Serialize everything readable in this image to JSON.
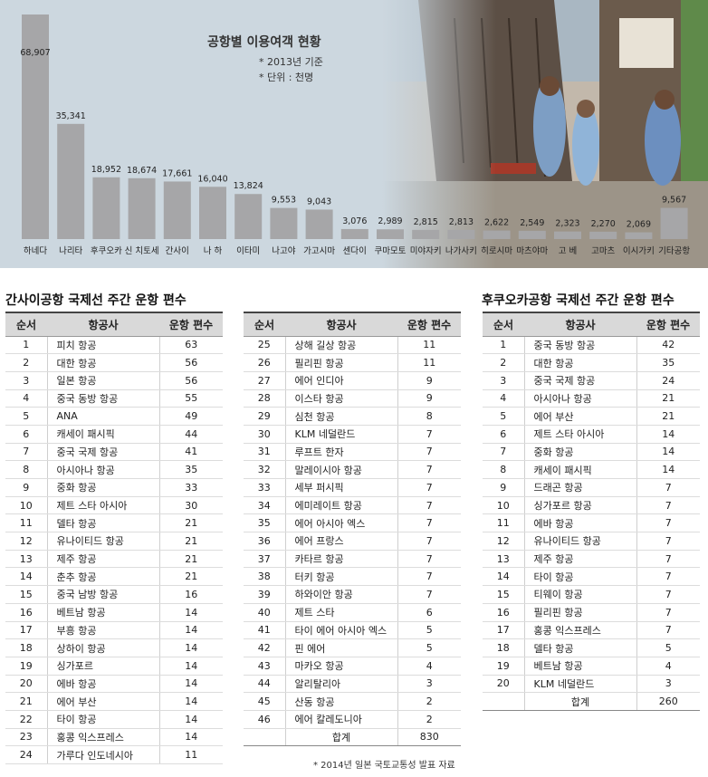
{
  "chart_data": {
    "type": "bar",
    "title": "공항별 이용여객 현황",
    "notes": [
      "* 2013년 기준",
      "* 단위 : 천명"
    ],
    "categories": [
      "하네다",
      "나리타",
      "후쿠오카",
      "신 치토세",
      "간사이",
      "나 하",
      "이타미",
      "나고야",
      "가고시마",
      "센다이",
      "쿠마모토",
      "미야자키",
      "나가사키",
      "히로시마",
      "마츠야마",
      "고 베",
      "고마츠",
      "이시가키",
      "기타공항"
    ],
    "values": [
      68907,
      35341,
      18952,
      18674,
      17661,
      16040,
      13824,
      9553,
      9043,
      3076,
      2989,
      2815,
      2813,
      2622,
      2549,
      2323,
      2270,
      2069,
      9567
    ],
    "value_labels": [
      "68,907",
      "35,341",
      "18,952",
      "18,674",
      "17,661",
      "16,040",
      "13,824",
      "9,553",
      "9,043",
      "3,076",
      "2,989",
      "2,815",
      "2,813",
      "2,622",
      "2,549",
      "2,323",
      "2,270",
      "2,069",
      "9,567"
    ],
    "colors": {
      "bar": "#a6a6a8",
      "panel": "#ccd7df"
    }
  },
  "tables": {
    "kansai": {
      "title": "간사이공항 국제선 주간 운항 편수",
      "headers": [
        "순서",
        "항공사",
        "운항 편수"
      ],
      "rows": [
        [
          "1",
          "피치 항공",
          "63"
        ],
        [
          "2",
          "대한 항공",
          "56"
        ],
        [
          "3",
          "일본 항공",
          "56"
        ],
        [
          "4",
          "중국 동방 항공",
          "55"
        ],
        [
          "5",
          "ANA",
          "49"
        ],
        [
          "6",
          "캐세이 패시픽",
          "44"
        ],
        [
          "7",
          "중국 국제 항공",
          "41"
        ],
        [
          "8",
          "아시아나 항공",
          "35"
        ],
        [
          "9",
          "중화 항공",
          "33"
        ],
        [
          "10",
          "제트 스타 아시아",
          "30"
        ],
        [
          "11",
          "델타 항공",
          "21"
        ],
        [
          "12",
          "유나이티드 항공",
          "21"
        ],
        [
          "13",
          "제주 항공",
          "21"
        ],
        [
          "14",
          "춘추 항공",
          "21"
        ],
        [
          "15",
          "중국 남방 항공",
          "16"
        ],
        [
          "16",
          "베트남 항공",
          "14"
        ],
        [
          "17",
          "부흥 항공",
          "14"
        ],
        [
          "18",
          "상하이 항공",
          "14"
        ],
        [
          "19",
          "싱가포르",
          "14"
        ],
        [
          "20",
          "에바 항공",
          "14"
        ],
        [
          "21",
          "에어 부산",
          "14"
        ],
        [
          "22",
          "타이 항공",
          "14"
        ],
        [
          "23",
          "홍콩 익스프레스",
          "14"
        ],
        [
          "24",
          "가루다 인도네시아",
          "11"
        ]
      ]
    },
    "kansai2": {
      "headers": [
        "순서",
        "항공사",
        "운항 편수"
      ],
      "rows": [
        [
          "25",
          "상해 길상 항공",
          "11"
        ],
        [
          "26",
          "필리핀 항공",
          "11"
        ],
        [
          "27",
          "에어 인디아",
          "9"
        ],
        [
          "28",
          "이스타 항공",
          "9"
        ],
        [
          "29",
          "심천 항공",
          "8"
        ],
        [
          "30",
          "KLM 네덜란드",
          "7"
        ],
        [
          "31",
          "루프트 한자",
          "7"
        ],
        [
          "32",
          "말레이시아 항공",
          "7"
        ],
        [
          "33",
          "세부 퍼시픽",
          "7"
        ],
        [
          "34",
          "에미레이트 항공",
          "7"
        ],
        [
          "35",
          "에어 아시아 엑스",
          "7"
        ],
        [
          "36",
          "에어 프랑스",
          "7"
        ],
        [
          "37",
          "카타르 항공",
          "7"
        ],
        [
          "38",
          "터키 항공",
          "7"
        ],
        [
          "39",
          "하와이안 항공",
          "7"
        ],
        [
          "40",
          "제트 스타",
          "6"
        ],
        [
          "41",
          "타이 에어 아시아 엑스",
          "5"
        ],
        [
          "42",
          "핀 에어",
          "5"
        ],
        [
          "43",
          "마카오 항공",
          "4"
        ],
        [
          "44",
          "알리탈리아",
          "3"
        ],
        [
          "45",
          "산동 항공",
          "2"
        ],
        [
          "46",
          "에어 칼레도니아",
          "2"
        ]
      ],
      "total_label": "합계",
      "total_value": "830",
      "source": "* 2014년 일본 국토교통성 발표 자료"
    },
    "fukuoka": {
      "title": "후쿠오카공항 국제선 주간 운항 편수",
      "headers": [
        "순서",
        "항공사",
        "운항 편수"
      ],
      "rows": [
        [
          "1",
          "중국 동방 항공",
          "42"
        ],
        [
          "2",
          "대한 항공",
          "35"
        ],
        [
          "3",
          "중국 국제 항공",
          "24"
        ],
        [
          "4",
          "아시아나 항공",
          "21"
        ],
        [
          "5",
          "에어 부산",
          "21"
        ],
        [
          "6",
          "제트 스타 아시아",
          "14"
        ],
        [
          "7",
          "중화 항공",
          "14"
        ],
        [
          "8",
          "캐세이 패시픽",
          "14"
        ],
        [
          "9",
          "드래곤 항공",
          "7"
        ],
        [
          "10",
          "싱가포르 항공",
          "7"
        ],
        [
          "11",
          "에바 항공",
          "7"
        ],
        [
          "12",
          "유나이티드 항공",
          "7"
        ],
        [
          "13",
          "제주 항공",
          "7"
        ],
        [
          "14",
          "타이 항공",
          "7"
        ],
        [
          "15",
          "티웨이 항공",
          "7"
        ],
        [
          "16",
          "필리핀 항공",
          "7"
        ],
        [
          "17",
          "홍콩 익스프레스",
          "7"
        ],
        [
          "18",
          "델타 항공",
          "5"
        ],
        [
          "19",
          "베트남 항공",
          "4"
        ],
        [
          "20",
          "KLM 네덜란드",
          "3"
        ]
      ],
      "total_label": "합계",
      "total_value": "260"
    }
  }
}
